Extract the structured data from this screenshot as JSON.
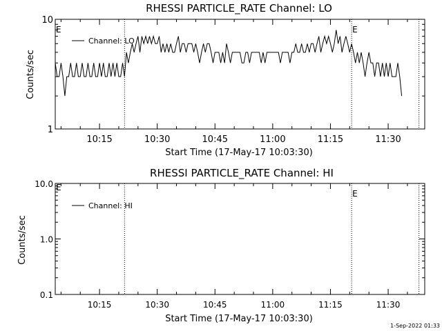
{
  "footer_timestamp": "1-Sep-2022 01:33",
  "chart_data": [
    {
      "type": "line",
      "title": "RHESSI PARTICLE_RATE Channel: LO",
      "xlabel": "Start Time (17-May-17 10:03:30)",
      "ylabel": "Counts/sec",
      "y_scale": "log",
      "ylim": [
        1,
        10
      ],
      "y_ticks": [
        "1",
        "10"
      ],
      "x_tick_labels": [
        "10:15",
        "10:30",
        "10:45",
        "11:00",
        "11:15",
        "11:30"
      ],
      "x_ticks_min": [
        15,
        30,
        45,
        60,
        75,
        90
      ],
      "xlim_min": [
        3.5,
        99.5
      ],
      "markers": [
        {
          "t": 21.5,
          "label": ""
        },
        {
          "t": 80.5,
          "label": "E"
        },
        {
          "t": 98.0,
          "label": ""
        }
      ],
      "edge_label": "E",
      "legend": {
        "label": "Channel: LO",
        "placement": "top-left"
      },
      "series": [
        {
          "name": "Channel: LO",
          "x_start_min": 3.5,
          "x_step_min": 0.5,
          "values": [
            4,
            3,
            3,
            4,
            3,
            2,
            3,
            3,
            4,
            3,
            3,
            4,
            3,
            3,
            4,
            3,
            3,
            4,
            3,
            3,
            4,
            3,
            3,
            4,
            3,
            4,
            3,
            3,
            4,
            3,
            4,
            3,
            4,
            3,
            3,
            4,
            3,
            5,
            4,
            5,
            6,
            5,
            6,
            7,
            5,
            7,
            6,
            7,
            6,
            7,
            6,
            7,
            6,
            6,
            7,
            5,
            6,
            5,
            6,
            5,
            6,
            5,
            5,
            6,
            7,
            5,
            6,
            6,
            5,
            6,
            6,
            6,
            5,
            6,
            5,
            4,
            5,
            6,
            5,
            6,
            6,
            5,
            4,
            5,
            5,
            5,
            4,
            5,
            4,
            6,
            5,
            4,
            5,
            5,
            5,
            5,
            5,
            4,
            4,
            5,
            5,
            4,
            5,
            5,
            5,
            5,
            5,
            4,
            5,
            4,
            5,
            5,
            5,
            5,
            5,
            5,
            5,
            4,
            5,
            5,
            5,
            5,
            4,
            5,
            5,
            6,
            5,
            5,
            6,
            5,
            5,
            6,
            5,
            6,
            6,
            5,
            6,
            7,
            5,
            6,
            7,
            6,
            7,
            6,
            5,
            6,
            8,
            6,
            7,
            5,
            6,
            7,
            6,
            5,
            6,
            5,
            4,
            5,
            4,
            5,
            4,
            3,
            4,
            5,
            4,
            4,
            3,
            4,
            4,
            3,
            4,
            3,
            4,
            3,
            4,
            3,
            3,
            3,
            4,
            3,
            2
          ]
        }
      ]
    },
    {
      "type": "line",
      "title": "RHESSI PARTICLE_RATE Channel: HI",
      "xlabel": "Start Time (17-May-17 10:03:30)",
      "ylabel": "Counts/sec",
      "y_scale": "log",
      "ylim": [
        0.1,
        10
      ],
      "y_ticks": [
        "0.1",
        "1.0",
        "10.0"
      ],
      "x_tick_labels": [
        "10:15",
        "10:30",
        "10:45",
        "11:00",
        "11:15",
        "11:30"
      ],
      "x_ticks_min": [
        15,
        30,
        45,
        60,
        75,
        90
      ],
      "xlim_min": [
        3.5,
        99.5
      ],
      "markers": [
        {
          "t": 21.5,
          "label": ""
        },
        {
          "t": 80.5,
          "label": "E"
        },
        {
          "t": 98.0,
          "label": ""
        }
      ],
      "edge_label": "E",
      "legend": {
        "label": "Channel: HI",
        "placement": "top-left"
      },
      "series": [
        {
          "name": "Channel: HI",
          "x_start_min": 3.5,
          "x_step_min": 0.5,
          "values": []
        }
      ]
    }
  ]
}
